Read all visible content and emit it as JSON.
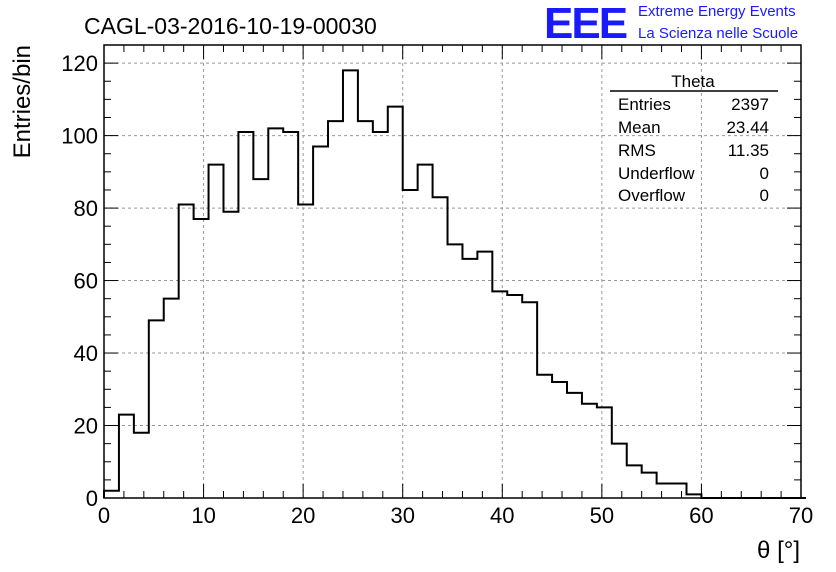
{
  "header": {
    "run_title": "CAGL-03-2016-10-19-00030",
    "logo_text": "EEE",
    "logo_line1": "Extreme Energy Events",
    "logo_line2": "La Scienza nelle Scuole",
    "logo_color": "#1a1aff"
  },
  "stats": {
    "name": "Theta",
    "rows": [
      {
        "label": "Entries",
        "value": "2397"
      },
      {
        "label": "Mean",
        "value": "23.44"
      },
      {
        "label": "RMS",
        "value": "11.35"
      },
      {
        "label": "Underflow",
        "value": "0"
      },
      {
        "label": "Overflow",
        "value": "0"
      }
    ]
  },
  "chart_data": {
    "type": "bar",
    "style": "step-histogram",
    "xlabel": "θ [°]",
    "ylabel": "Entries/bin",
    "xlim": [
      0,
      70
    ],
    "ylim": [
      0,
      125
    ],
    "grid": true,
    "bin_width": 1.5,
    "bin_edges_start": 0,
    "xticks": [
      0,
      10,
      20,
      30,
      40,
      50,
      60,
      70
    ],
    "yticks": [
      0,
      20,
      40,
      60,
      80,
      100,
      120
    ],
    "values": [
      2,
      23,
      18,
      49,
      55,
      81,
      77,
      92,
      79,
      101,
      88,
      102,
      101,
      81,
      97,
      104,
      118,
      104,
      101,
      108,
      85,
      92,
      83,
      70,
      66,
      68,
      57,
      56,
      54,
      34,
      32,
      29,
      26,
      25,
      15,
      9,
      7,
      4,
      4,
      1,
      0,
      0,
      0,
      0,
      0,
      0,
      0
    ]
  }
}
